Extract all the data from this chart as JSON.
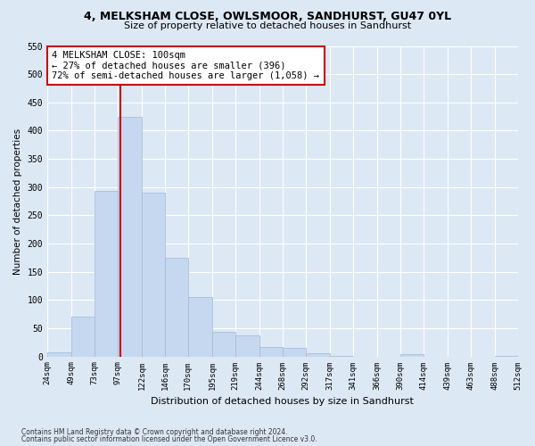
{
  "title": "4, MELKSHAM CLOSE, OWLSMOOR, SANDHURST, GU47 0YL",
  "subtitle": "Size of property relative to detached houses in Sandhurst",
  "xlabel": "Distribution of detached houses by size in Sandhurst",
  "ylabel": "Number of detached properties",
  "bin_labels": [
    "24sqm",
    "49sqm",
    "73sqm",
    "97sqm",
    "122sqm",
    "146sqm",
    "170sqm",
    "195sqm",
    "219sqm",
    "244sqm",
    "268sqm",
    "292sqm",
    "317sqm",
    "341sqm",
    "366sqm",
    "390sqm",
    "414sqm",
    "439sqm",
    "463sqm",
    "488sqm",
    "512sqm"
  ],
  "bin_edges": [
    24,
    49,
    73,
    97,
    122,
    146,
    170,
    195,
    219,
    244,
    268,
    292,
    317,
    341,
    366,
    390,
    414,
    439,
    463,
    488,
    512
  ],
  "bar_heights": [
    7,
    70,
    293,
    425,
    290,
    175,
    105,
    43,
    38,
    16,
    15,
    6,
    1,
    0,
    0,
    4,
    0,
    0,
    0,
    1
  ],
  "bar_color": "#c5d8f0",
  "bar_edgecolor": "#a0b8d8",
  "property_line_x": 100,
  "property_line_color": "#cc0000",
  "ylim": [
    0,
    550
  ],
  "annotation_text": "4 MELKSHAM CLOSE: 100sqm\n← 27% of detached houses are smaller (396)\n72% of semi-detached houses are larger (1,058) →",
  "annotation_box_facecolor": "#ffffff",
  "annotation_box_edgecolor": "#cc0000",
  "footer1": "Contains HM Land Registry data © Crown copyright and database right 2024.",
  "footer2": "Contains public sector information licensed under the Open Government Licence v3.0.",
  "background_color": "#dde8f5",
  "plot_bg_color": "#dde8f5",
  "yticks": [
    0,
    50,
    100,
    150,
    200,
    250,
    300,
    350,
    400,
    450,
    500,
    550
  ]
}
